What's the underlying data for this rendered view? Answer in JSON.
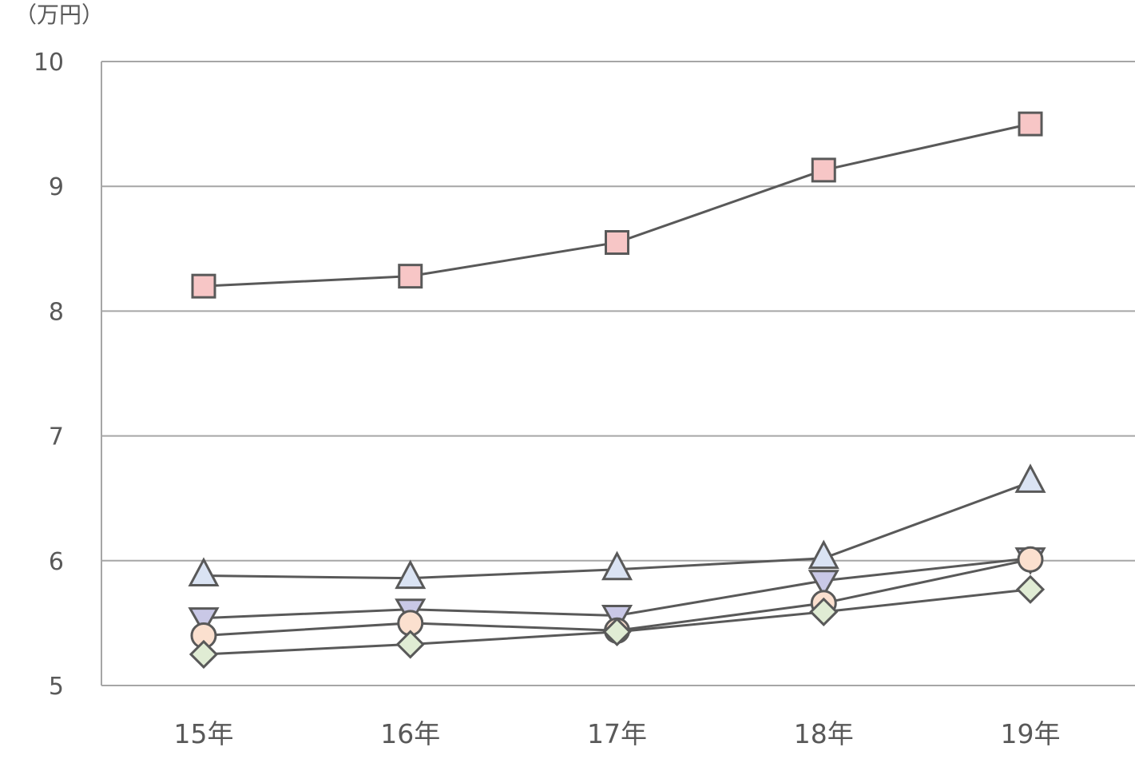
{
  "chart_data": {
    "type": "line",
    "unit_label": "（万円）",
    "categories": [
      "15年",
      "16年",
      "17年",
      "18年",
      "19年"
    ],
    "ylim": [
      5,
      10
    ],
    "yticks": [
      "5",
      "6",
      "7",
      "8",
      "9",
      "10"
    ],
    "grid": true,
    "series": [
      {
        "marker": "square",
        "fill": "#f7c6c6",
        "values": [
          8.2,
          8.28,
          8.55,
          9.13,
          9.5
        ]
      },
      {
        "marker": "triangle-up",
        "fill": "#dae3f3",
        "values": [
          5.88,
          5.86,
          5.93,
          6.02,
          6.63
        ]
      },
      {
        "marker": "triangle-down",
        "fill": "#c9c8e6",
        "values": [
          5.54,
          5.61,
          5.56,
          5.84,
          6.02
        ]
      },
      {
        "marker": "circle",
        "fill": "#fbe0cf",
        "values": [
          5.4,
          5.5,
          5.44,
          5.66,
          6.01
        ]
      },
      {
        "marker": "diamond",
        "fill": "#e0ecd4",
        "values": [
          5.25,
          5.33,
          5.43,
          5.59,
          5.77
        ]
      }
    ],
    "line_color": "#595959",
    "grid_color": "#a6a6a6"
  }
}
